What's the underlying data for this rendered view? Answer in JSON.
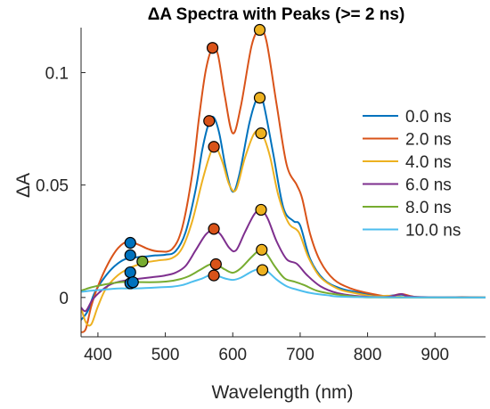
{
  "chart_data": {
    "type": "line",
    "title": "ΔA Spectra with Peaks (>= 2 ns)",
    "xlabel": "Wavelength (nm)",
    "ylabel": "ΔA",
    "xlim": [
      375,
      975
    ],
    "ylim": [
      -0.0175,
      0.12
    ],
    "xticks": [
      400,
      500,
      600,
      700,
      800,
      900
    ],
    "xtick_labels": [
      "400",
      "500",
      "600",
      "700",
      "800",
      "900"
    ],
    "yticks": [
      0,
      0.05,
      0.1
    ],
    "ytick_labels": [
      "0",
      "0.05",
      "0.1"
    ],
    "grid": false,
    "legend_position": "right",
    "series": [
      {
        "name": "0.0 ns",
        "color": "#0072BD",
        "points": [
          [
            375,
            -0.01
          ],
          [
            385,
            -0.006
          ],
          [
            395,
            0.002
          ],
          [
            410,
            0.009
          ],
          [
            425,
            0.014
          ],
          [
            440,
            0.017
          ],
          [
            455,
            0.0178
          ],
          [
            470,
            0.0182
          ],
          [
            485,
            0.0187
          ],
          [
            500,
            0.019
          ],
          [
            515,
            0.0205
          ],
          [
            530,
            0.029
          ],
          [
            545,
            0.048
          ],
          [
            555,
            0.066
          ],
          [
            565,
            0.078
          ],
          [
            572,
            0.08
          ],
          [
            580,
            0.073
          ],
          [
            590,
            0.057
          ],
          [
            600,
            0.047
          ],
          [
            610,
            0.055
          ],
          [
            625,
            0.078
          ],
          [
            637,
            0.089
          ],
          [
            645,
            0.087
          ],
          [
            660,
            0.064
          ],
          [
            675,
            0.04
          ],
          [
            690,
            0.034
          ],
          [
            700,
            0.032
          ],
          [
            715,
            0.017
          ],
          [
            735,
            0.008
          ],
          [
            760,
            0.004
          ],
          [
            790,
            0.002
          ],
          [
            820,
            0.0005
          ],
          [
            850,
            0.0012
          ],
          [
            870,
            0.0002
          ],
          [
            900,
            0.0
          ],
          [
            940,
            0.0
          ],
          [
            975,
            0.0
          ]
        ]
      },
      {
        "name": "2.0 ns",
        "color": "#D95319",
        "points": [
          [
            375,
            -0.0155
          ],
          [
            382,
            -0.014
          ],
          [
            390,
            -0.004
          ],
          [
            400,
            0.005
          ],
          [
            415,
            0.015
          ],
          [
            430,
            0.022
          ],
          [
            445,
            0.025
          ],
          [
            460,
            0.0235
          ],
          [
            475,
            0.0215
          ],
          [
            490,
            0.0205
          ],
          [
            510,
            0.0215
          ],
          [
            525,
            0.031
          ],
          [
            540,
            0.055
          ],
          [
            550,
            0.08
          ],
          [
            560,
            0.101
          ],
          [
            570,
            0.111
          ],
          [
            578,
            0.108
          ],
          [
            588,
            0.09
          ],
          [
            600,
            0.073
          ],
          [
            612,
            0.085
          ],
          [
            628,
            0.112
          ],
          [
            640,
            0.119
          ],
          [
            650,
            0.114
          ],
          [
            665,
            0.086
          ],
          [
            680,
            0.059
          ],
          [
            695,
            0.05
          ],
          [
            703,
            0.044
          ],
          [
            715,
            0.028
          ],
          [
            730,
            0.016
          ],
          [
            750,
            0.008
          ],
          [
            775,
            0.004
          ],
          [
            800,
            0.002
          ],
          [
            830,
            0.0005
          ],
          [
            850,
            0.0015
          ],
          [
            870,
            0.0003
          ],
          [
            900,
            0.0
          ],
          [
            940,
            0.0002
          ],
          [
            975,
            0.0
          ]
        ]
      },
      {
        "name": "4.0 ns",
        "color": "#EDB120",
        "points": [
          [
            375,
            -0.0045
          ],
          [
            382,
            -0.011
          ],
          [
            390,
            -0.012
          ],
          [
            400,
            -0.004
          ],
          [
            412,
            0.004
          ],
          [
            430,
            0.01
          ],
          [
            450,
            0.0135
          ],
          [
            470,
            0.0155
          ],
          [
            490,
            0.0165
          ],
          [
            510,
            0.0175
          ],
          [
            525,
            0.022
          ],
          [
            540,
            0.034
          ],
          [
            555,
            0.052
          ],
          [
            568,
            0.065
          ],
          [
            575,
            0.067
          ],
          [
            585,
            0.06
          ],
          [
            595,
            0.05
          ],
          [
            605,
            0.048
          ],
          [
            618,
            0.062
          ],
          [
            632,
            0.073
          ],
          [
            643,
            0.073
          ],
          [
            655,
            0.063
          ],
          [
            668,
            0.045
          ],
          [
            683,
            0.033
          ],
          [
            698,
            0.029
          ],
          [
            712,
            0.018
          ],
          [
            730,
            0.009
          ],
          [
            755,
            0.004
          ],
          [
            780,
            0.002
          ],
          [
            810,
            0.0005
          ],
          [
            830,
            0.0008
          ],
          [
            850,
            0.0003
          ],
          [
            900,
            0.0
          ],
          [
            975,
            0.0
          ]
        ]
      },
      {
        "name": "6.0 ns",
        "color": "#7E2F8E",
        "points": [
          [
            375,
            -0.0045
          ],
          [
            382,
            -0.006
          ],
          [
            392,
            -0.001
          ],
          [
            405,
            0.003
          ],
          [
            420,
            0.006
          ],
          [
            440,
            0.0075
          ],
          [
            460,
            0.0083
          ],
          [
            480,
            0.009
          ],
          [
            500,
            0.0098
          ],
          [
            515,
            0.011
          ],
          [
            530,
            0.014
          ],
          [
            545,
            0.021
          ],
          [
            560,
            0.028
          ],
          [
            572,
            0.03
          ],
          [
            582,
            0.028
          ],
          [
            595,
            0.022
          ],
          [
            605,
            0.021
          ],
          [
            618,
            0.029
          ],
          [
            632,
            0.037
          ],
          [
            642,
            0.039
          ],
          [
            652,
            0.035
          ],
          [
            665,
            0.025
          ],
          [
            680,
            0.017
          ],
          [
            695,
            0.015
          ],
          [
            710,
            0.01
          ],
          [
            730,
            0.005
          ],
          [
            755,
            0.002
          ],
          [
            790,
            0.0005
          ],
          [
            830,
            0.0003
          ],
          [
            850,
            0.0015
          ],
          [
            870,
            0.0003
          ],
          [
            975,
            0.0
          ]
        ]
      },
      {
        "name": "8.0 ns",
        "color": "#77AC30",
        "points": [
          [
            375,
            0.003
          ],
          [
            390,
            0.0045
          ],
          [
            405,
            0.0055
          ],
          [
            425,
            0.0065
          ],
          [
            445,
            0.007
          ],
          [
            465,
            0.0068
          ],
          [
            485,
            0.0068
          ],
          [
            505,
            0.0072
          ],
          [
            520,
            0.008
          ],
          [
            535,
            0.0095
          ],
          [
            550,
            0.012
          ],
          [
            565,
            0.0145
          ],
          [
            575,
            0.0148
          ],
          [
            588,
            0.0125
          ],
          [
            600,
            0.011
          ],
          [
            612,
            0.013
          ],
          [
            628,
            0.018
          ],
          [
            640,
            0.021
          ],
          [
            650,
            0.0195
          ],
          [
            662,
            0.014
          ],
          [
            677,
            0.0085
          ],
          [
            692,
            0.007
          ],
          [
            706,
            0.0055
          ],
          [
            725,
            0.003
          ],
          [
            750,
            0.0015
          ],
          [
            790,
            0.0002
          ],
          [
            830,
            0.0
          ],
          [
            975,
            0.0
          ]
        ]
      },
      {
        "name": "10.0 ns",
        "color": "#4DBEEE",
        "points": [
          [
            375,
            0.0025
          ],
          [
            390,
            0.003
          ],
          [
            410,
            0.0035
          ],
          [
            430,
            0.004
          ],
          [
            450,
            0.004
          ],
          [
            470,
            0.0042
          ],
          [
            490,
            0.0045
          ],
          [
            510,
            0.0048
          ],
          [
            525,
            0.0055
          ],
          [
            540,
            0.007
          ],
          [
            555,
            0.0085
          ],
          [
            565,
            0.0098
          ],
          [
            575,
            0.0098
          ],
          [
            588,
            0.0085
          ],
          [
            600,
            0.0078
          ],
          [
            612,
            0.0088
          ],
          [
            628,
            0.0115
          ],
          [
            640,
            0.0128
          ],
          [
            650,
            0.012
          ],
          [
            665,
            0.008
          ],
          [
            680,
            0.005
          ],
          [
            695,
            0.0035
          ],
          [
            715,
            0.002
          ],
          [
            740,
            0.001
          ],
          [
            780,
            0.0002
          ],
          [
            975,
            0.0
          ]
        ]
      }
    ],
    "peak_markers": [
      {
        "series": "0.0 ns",
        "color": "#0072BD",
        "points": [
          [
            448,
            0.0243
          ],
          [
            448,
            0.0188
          ],
          [
            448,
            0.0112
          ],
          [
            448,
            0.0063
          ],
          [
            452,
            0.0068
          ]
        ]
      },
      {
        "series": "2.0 ns",
        "color": "#D95319",
        "points": [
          [
            570,
            0.111
          ],
          [
            565,
            0.0785
          ],
          [
            572,
            0.067
          ],
          [
            572,
            0.0305
          ],
          [
            575,
            0.0148
          ],
          [
            572,
            0.0098
          ]
        ]
      },
      {
        "series": "4.0 ns",
        "color": "#EDB120",
        "points": [
          [
            640,
            0.119
          ],
          [
            640,
            0.0888
          ],
          [
            642,
            0.073
          ],
          [
            642,
            0.039
          ],
          [
            643,
            0.0212
          ],
          [
            644,
            0.0122
          ]
        ]
      },
      {
        "series": "8.0 ns",
        "color": "#77AC30",
        "points": [
          [
            466,
            0.016
          ]
        ]
      }
    ],
    "marker_outline": "#000000",
    "axis_color": "#262626"
  }
}
